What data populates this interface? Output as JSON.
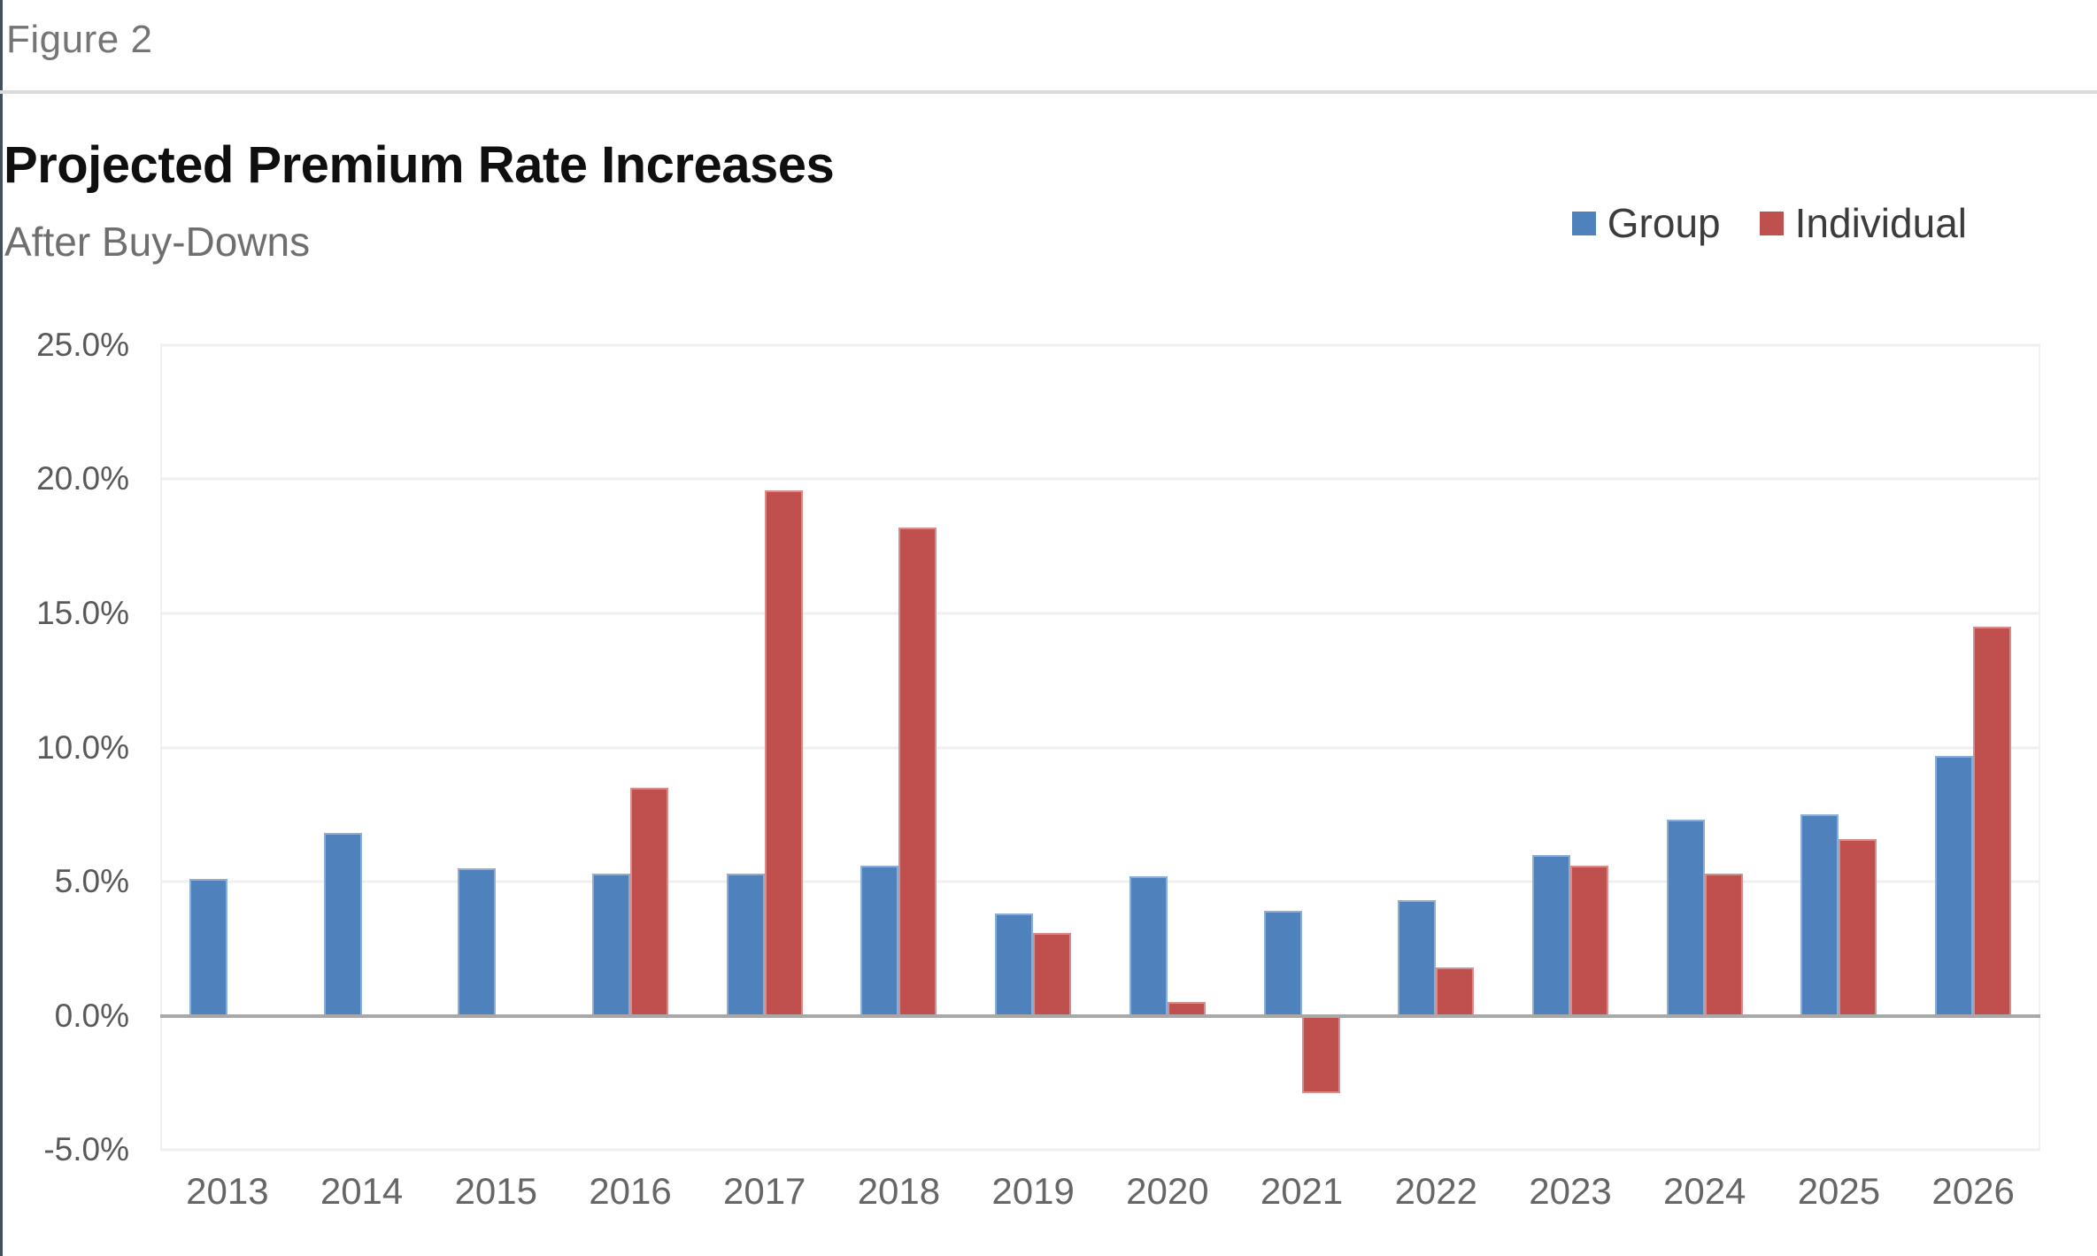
{
  "figure_label": "Figure 2",
  "header": {
    "title": "Projected Premium Rate Increases",
    "subtitle": "After Buy-Downs"
  },
  "legend": [
    {
      "label": "Group",
      "color": "#4F81BD"
    },
    {
      "label": "Individual",
      "color": "#C0504D"
    }
  ],
  "colors": {
    "group_blue": "#4F81BD",
    "individual_red": "#C0504D",
    "gridline": "#EFEFEF",
    "zero_line": "#A8A8A8",
    "title_text": "#0F0F0F",
    "muted_text": "#6F6F6F"
  },
  "chart_data": {
    "type": "bar",
    "title": "Projected Premium Rate Increases",
    "subtitle": "After Buy-Downs",
    "categories": [
      "2013",
      "2014",
      "2015",
      "2016",
      "2017",
      "2018",
      "2019",
      "2020",
      "2021",
      "2022",
      "2023",
      "2024",
      "2025",
      "2026"
    ],
    "series": [
      {
        "name": "Group",
        "color": "#4F81BD",
        "values": [
          5.1,
          6.8,
          5.5,
          5.3,
          5.3,
          5.6,
          3.8,
          5.2,
          3.9,
          4.3,
          6.0,
          7.3,
          7.5,
          9.7
        ]
      },
      {
        "name": "Individual",
        "color": "#C0504D",
        "values": [
          null,
          null,
          null,
          8.5,
          19.6,
          18.2,
          3.1,
          0.5,
          -2.9,
          1.8,
          5.6,
          5.3,
          6.6,
          14.5
        ]
      }
    ],
    "xlabel": "",
    "ylabel": "",
    "ylim": [
      -5,
      25
    ],
    "yticks": [
      {
        "value": 25,
        "label": "25.0%"
      },
      {
        "value": 20,
        "label": "20.0%"
      },
      {
        "value": 15,
        "label": "15.0%"
      },
      {
        "value": 10,
        "label": "10.0%"
      },
      {
        "value": 5,
        "label": "5.0%"
      },
      {
        "value": 0,
        "label": "0.0%"
      },
      {
        "value": -5,
        "label": "-5.0%"
      }
    ],
    "grid": true,
    "legend_position": "top-right",
    "value_format": "percent"
  }
}
